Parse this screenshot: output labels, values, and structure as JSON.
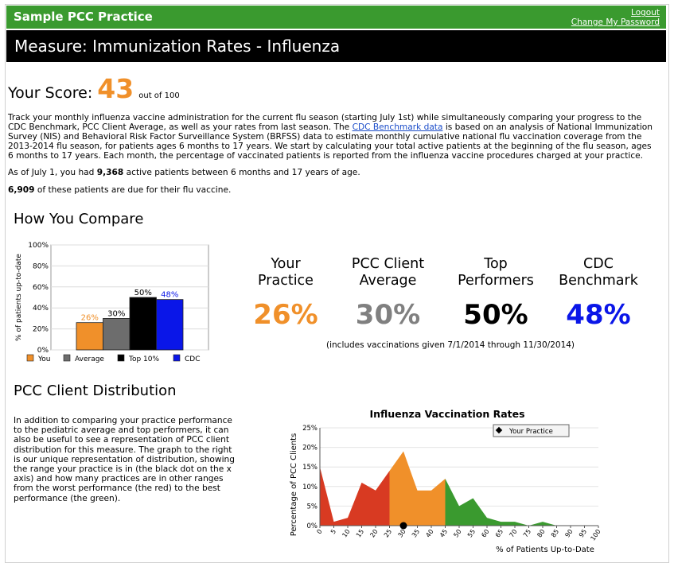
{
  "header": {
    "practice_name": "Sample PCC Practice",
    "logout": "Logout",
    "change_password": "Change My Password"
  },
  "measure": {
    "title": "Measure: Immunization Rates - Influenza"
  },
  "score": {
    "label": "Your Score:",
    "value": "43",
    "out_of": "out of 100"
  },
  "intro": {
    "text_before_link": "Track your monthly influenza vaccine administration for the current flu season (starting July 1st) while simultaneously comparing your progress to the CDC Benchmark, PCC Client Average, as well as your rates from last season. The ",
    "link": "CDC Benchmark data",
    "text_after_link": " is based on an analysis of National Immunization Survey (NIS) and Behavioral Risk Factor Surveillance System (BRFSS) data to estimate monthly cumulative national flu vaccination coverage from the 2013-2014 flu season, for patients ages 6 months to 17 years. We start by calculating your total active patients at the beginning of the flu season, ages 6 months to 17 years. Each month, the percentage of vaccinated patients is reported from the influenza vaccine procedures charged at your practice."
  },
  "active": {
    "pre": "As of July 1, you had ",
    "count": "9,368",
    "post": " active patients between 6 months and 17 years of age."
  },
  "due": {
    "count": "6,909",
    "post": " of these patients are due for their flu vaccine."
  },
  "compare": {
    "heading": "How You Compare",
    "stats": [
      {
        "label_line1": "Your",
        "label_line2": "Practice",
        "value": "26%",
        "color": "#f0902a"
      },
      {
        "label_line1": "PCC Client",
        "label_line2": "Average",
        "value": "30%",
        "color": "#808080"
      },
      {
        "label_line1": "Top",
        "label_line2": "Performers",
        "value": "50%",
        "color": "#000000"
      },
      {
        "label_line1": "CDC",
        "label_line2": "Benchmark",
        "value": "48%",
        "color": "#0a16e8"
      }
    ],
    "note": "(includes vaccinations given 7/1/2014 through 11/30/2014)"
  },
  "distribution": {
    "heading": "PCC Client Distribution",
    "description": "In addition to comparing your practice performance to the pediatric average and top performers, it can also be useful to see a representation of PCC client distribution for this measure. The graph to the right is our unique representation of distribution, showing the range your practice is in (the black dot on the x axis) and how many practices are in other ranges from the worst performance (the red) to the best performance (the green)."
  },
  "chart_data": [
    {
      "type": "bar",
      "categories": [
        "You",
        "Average",
        "Top 10%",
        "CDC"
      ],
      "values": [
        26,
        30,
        50,
        48
      ],
      "data_labels": [
        "26%",
        "30%",
        "50%",
        "48%"
      ],
      "colors": [
        "#f0902a",
        "#6d6d6d",
        "#000000",
        "#0a16e8"
      ],
      "label_colors": [
        "#f0902a",
        "#000000",
        "#000000",
        "#0a16e8"
      ],
      "ylabel": "% of patients up-to-date",
      "ylim": [
        0,
        100
      ],
      "yticks": [
        "0%",
        "20%",
        "40%",
        "60%",
        "80%",
        "100%"
      ],
      "legend": [
        "You",
        "Average",
        "Top 10%",
        "CDC"
      ],
      "legend_position": "bottom",
      "grid": true
    },
    {
      "type": "area",
      "title": "Influenza Vaccination Rates",
      "xlabel": "% of Patients Up-to-Date",
      "ylabel": "Percentage of PCC Clients",
      "x": [
        0,
        5,
        10,
        15,
        20,
        25,
        30,
        35,
        40,
        45,
        50,
        55,
        60,
        65,
        70,
        75,
        80,
        85,
        90,
        95,
        100
      ],
      "y": [
        15,
        1,
        2,
        11,
        9,
        14,
        19,
        9,
        9,
        12,
        5,
        7,
        2,
        1,
        1,
        0,
        1,
        0,
        0,
        0,
        0
      ],
      "xticks": [
        "0",
        "5",
        "10",
        "15",
        "20",
        "25",
        "30",
        "35",
        "40",
        "45",
        "50",
        "55",
        "60",
        "65",
        "70",
        "75",
        "80",
        "85",
        "90",
        "95",
        "100"
      ],
      "yticks": [
        "0%",
        "5%",
        "10%",
        "15%",
        "20%",
        "25%"
      ],
      "ylim": [
        0,
        25
      ],
      "regions": [
        {
          "from": 0,
          "to": 25,
          "color": "#d83a22"
        },
        {
          "from": 25,
          "to": 45,
          "color": "#f0902a"
        },
        {
          "from": 45,
          "to": 100,
          "color": "#3a9a2f"
        }
      ],
      "marker": {
        "x": 30,
        "label": "Your Practice"
      },
      "legend": [
        "Your Practice"
      ],
      "legend_position": "top-right",
      "grid": true
    }
  ]
}
